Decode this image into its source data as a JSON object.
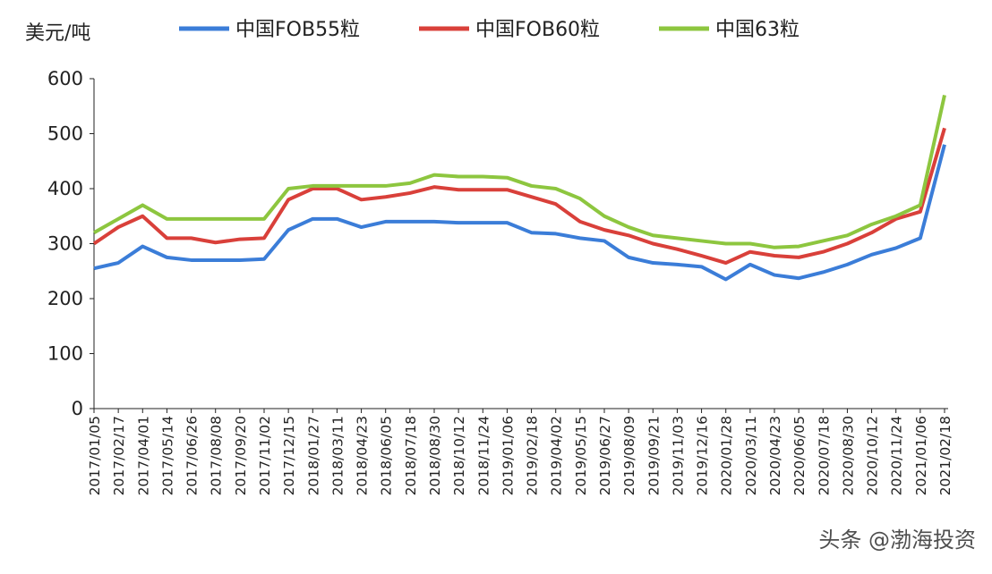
{
  "chart_data": {
    "type": "line",
    "y_label": "美元/吨",
    "categories": [
      "2017/01/05",
      "2017/02/17",
      "2017/04/01",
      "2017/05/14",
      "2017/06/26",
      "2017/08/08",
      "2017/09/20",
      "2017/11/02",
      "2017/12/15",
      "2018/01/27",
      "2018/03/11",
      "2018/04/23",
      "2018/06/05",
      "2018/07/18",
      "2018/08/30",
      "2018/10/12",
      "2018/11/24",
      "2019/01/06",
      "2019/02/18",
      "2019/04/02",
      "2019/05/15",
      "2019/06/27",
      "2019/08/09",
      "2019/09/21",
      "2019/11/03",
      "2019/12/16",
      "2020/01/28",
      "2020/03/11",
      "2020/04/23",
      "2020/06/05",
      "2020/07/18",
      "2020/08/30",
      "2020/10/12",
      "2020/11/24",
      "2021/01/06",
      "2021/02/18"
    ],
    "series": [
      {
        "name": "中国FOB55粒",
        "color": "#3b7dd8",
        "values": [
          255,
          265,
          295,
          275,
          270,
          270,
          270,
          272,
          325,
          345,
          345,
          330,
          340,
          340,
          340,
          338,
          338,
          338,
          320,
          318,
          310,
          305,
          275,
          265,
          262,
          258,
          235,
          262,
          243,
          237,
          248,
          262,
          280,
          292,
          310,
          480
        ]
      },
      {
        "name": "中国FOB60粒",
        "color": "#d9403a",
        "values": [
          300,
          330,
          350,
          310,
          310,
          302,
          308,
          310,
          380,
          400,
          400,
          380,
          385,
          392,
          403,
          398,
          398,
          398,
          385,
          372,
          340,
          325,
          315,
          300,
          290,
          278,
          265,
          285,
          278,
          275,
          285,
          300,
          320,
          345,
          358,
          510
        ]
      },
      {
        "name": "中国63粒",
        "color": "#8dc63f",
        "values": [
          320,
          345,
          370,
          345,
          345,
          345,
          345,
          345,
          400,
          405,
          405,
          405,
          405,
          410,
          425,
          422,
          422,
          420,
          405,
          400,
          382,
          350,
          330,
          315,
          310,
          305,
          300,
          300,
          293,
          295,
          305,
          315,
          335,
          350,
          370,
          570
        ]
      }
    ],
    "ylim": [
      0,
      600
    ],
    "yticks": [
      0,
      100,
      200,
      300,
      400,
      500,
      600
    ],
    "legend": "top"
  },
  "watermark": "头条 @渤海投资"
}
